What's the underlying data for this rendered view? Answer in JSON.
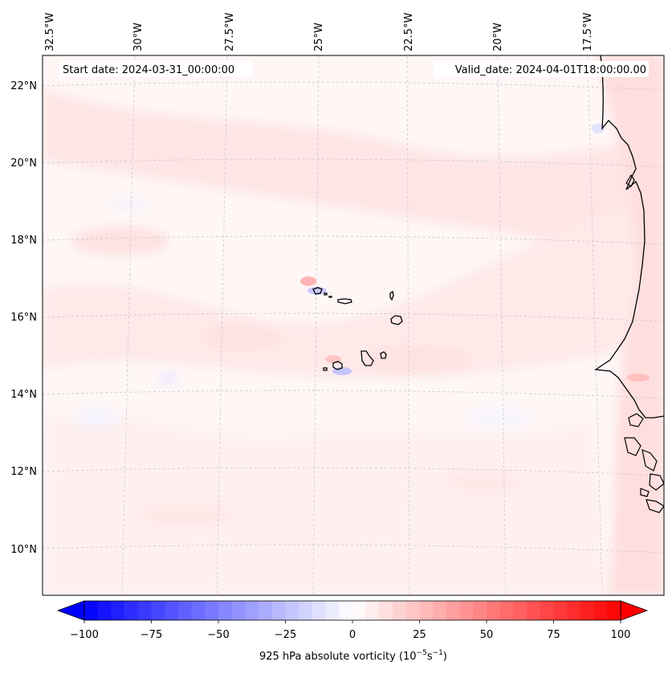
{
  "header": {
    "start_date": "Start date: 2024-03-31_00:00:00",
    "valid_date": "Valid_date: 2024-04-01T18:00:00.00"
  },
  "map": {
    "lon_labels": [
      "32.5°W",
      "30°W",
      "27.5°W",
      "25°W",
      "22.5°W",
      "20°W",
      "17.5°W"
    ],
    "lat_labels": [
      "22°N",
      "20°N",
      "18°N",
      "16°N",
      "14°N",
      "12°N",
      "10°N"
    ],
    "background_color": "#fff6f6",
    "coastline_color": "#000000",
    "gridline_style": "dashed, light gray"
  },
  "colorbar": {
    "label": "925 hPa absolute vorticity (10",
    "label_exp1": "−5",
    "label_mid": "s",
    "label_exp2": "−1",
    "label_end": ")",
    "ticks": [
      "−100",
      "−75",
      "−50",
      "−25",
      "0",
      "25",
      "50",
      "75",
      "100"
    ],
    "min": -100,
    "max": 100,
    "step": 5,
    "negative_color": "#0000ff",
    "positive_color": "#ff0000",
    "neutral_color": "#ffffff",
    "extend": "both"
  }
}
